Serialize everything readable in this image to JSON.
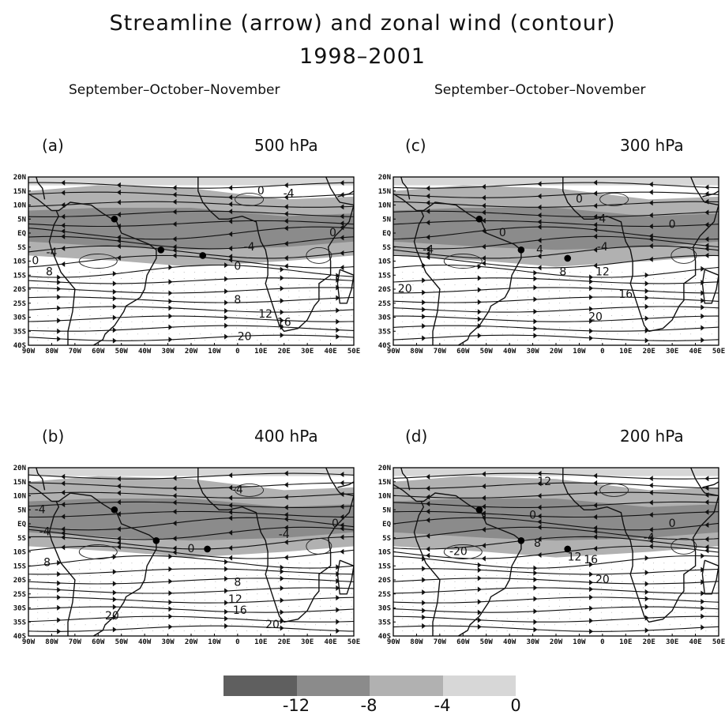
{
  "header": {
    "title": "Streamline (arrow) and zonal wind (contour)",
    "years": "1998–2001",
    "season_left": "September–October–November",
    "season_right": "September–October–November"
  },
  "axes": {
    "lat_labels": [
      "20N",
      "15N",
      "10N",
      "5N",
      "EQ",
      "5S",
      "10S",
      "15S",
      "20S",
      "25S",
      "30S",
      "35S",
      "40S"
    ],
    "lon_labels": [
      "90W",
      "80W",
      "70W",
      "60W",
      "50W",
      "40W",
      "30W",
      "20W",
      "10W",
      "0",
      "10E",
      "20E",
      "30E",
      "40E",
      "50E"
    ],
    "lat_range": [
      -40,
      20
    ],
    "lon_range": [
      -90,
      50
    ]
  },
  "panels": [
    {
      "id": "a",
      "label": "(a)",
      "level": "500 hPa",
      "dots": [
        [
          -53,
          5
        ],
        [
          -33,
          -6
        ],
        [
          -15,
          -8
        ]
      ],
      "contour_labels": [
        {
          "text": "0",
          "lon": 10,
          "lat": 15
        },
        {
          "text": "-4",
          "lon": 22,
          "lat": 14
        },
        {
          "text": "-4",
          "lon": 5,
          "lat": -5
        },
        {
          "text": "0",
          "lon": 0,
          "lat": -12
        },
        {
          "text": "0",
          "lon": 41,
          "lat": 0
        },
        {
          "text": "0",
          "lon": -87,
          "lat": -10
        },
        {
          "text": "-4",
          "lon": -80,
          "lat": -7
        },
        {
          "text": "8",
          "lon": -81,
          "lat": -14
        },
        {
          "text": "8",
          "lon": 0,
          "lat": -24
        },
        {
          "text": "12",
          "lon": 12,
          "lat": -29
        },
        {
          "text": "16",
          "lon": 20,
          "lat": -32
        },
        {
          "text": "20",
          "lon": 3,
          "lat": -37
        }
      ]
    },
    {
      "id": "b",
      "label": "(b)",
      "level": "400 hPa",
      "dots": [
        [
          -53,
          5
        ],
        [
          -35,
          -6
        ],
        [
          -13,
          -9
        ]
      ],
      "contour_labels": [
        {
          "text": "-4",
          "lon": -85,
          "lat": 5
        },
        {
          "text": "-4",
          "lon": -83,
          "lat": -3
        },
        {
          "text": "8",
          "lon": -82,
          "lat": -14
        },
        {
          "text": "0",
          "lon": -20,
          "lat": -9
        },
        {
          "text": "-4",
          "lon": 0,
          "lat": 12
        },
        {
          "text": "-4",
          "lon": 20,
          "lat": -4
        },
        {
          "text": "0",
          "lon": 42,
          "lat": 0
        },
        {
          "text": "8",
          "lon": 0,
          "lat": -21
        },
        {
          "text": "12",
          "lon": -1,
          "lat": -27
        },
        {
          "text": "16",
          "lon": 1,
          "lat": -31
        },
        {
          "text": "20",
          "lon": -54,
          "lat": -33
        },
        {
          "text": "20",
          "lon": 15,
          "lat": -36
        }
      ]
    },
    {
      "id": "c",
      "label": "(c)",
      "level": "300 hPa",
      "dots": [
        [
          -53,
          5
        ],
        [
          -35,
          -6
        ],
        [
          -15,
          -9
        ]
      ],
      "contour_labels": [
        {
          "text": "0",
          "lon": -10,
          "lat": 12
        },
        {
          "text": "4",
          "lon": 0,
          "lat": 5
        },
        {
          "text": "-4",
          "lon": 0,
          "lat": -5
        },
        {
          "text": "0",
          "lon": 30,
          "lat": 3
        },
        {
          "text": "0",
          "lon": -43,
          "lat": 0
        },
        {
          "text": "4",
          "lon": -27,
          "lat": -6
        },
        {
          "text": "8",
          "lon": -17,
          "lat": -14
        },
        {
          "text": "-4",
          "lon": -75,
          "lat": -6
        },
        {
          "text": "20",
          "lon": -85,
          "lat": -20
        },
        {
          "text": "12",
          "lon": 0,
          "lat": -14
        },
        {
          "text": "16",
          "lon": 10,
          "lat": -22
        },
        {
          "text": "20",
          "lon": -3,
          "lat": -30
        }
      ]
    },
    {
      "id": "d",
      "label": "(d)",
      "level": "200 hPa",
      "dots": [
        [
          -53,
          5
        ],
        [
          -35,
          -6
        ],
        [
          -15,
          -9
        ]
      ],
      "contour_labels": [
        {
          "text": "12",
          "lon": -25,
          "lat": 15
        },
        {
          "text": "0",
          "lon": -30,
          "lat": 3
        },
        {
          "text": "-20",
          "lon": -62,
          "lat": -10
        },
        {
          "text": "8",
          "lon": -28,
          "lat": -7
        },
        {
          "text": "12",
          "lon": -12,
          "lat": -12
        },
        {
          "text": "16",
          "lon": -5,
          "lat": -13
        },
        {
          "text": "20",
          "lon": 0,
          "lat": -20
        },
        {
          "text": "-4",
          "lon": 20,
          "lat": -5
        },
        {
          "text": "0",
          "lon": 30,
          "lat": 0
        }
      ]
    }
  ],
  "colorbar": {
    "colors": [
      "#5f5f5f",
      "#8b8b8b",
      "#b1b1b1",
      "#d7d7d7"
    ],
    "labels": [
      "-12",
      "-8",
      "-4",
      "0"
    ]
  }
}
